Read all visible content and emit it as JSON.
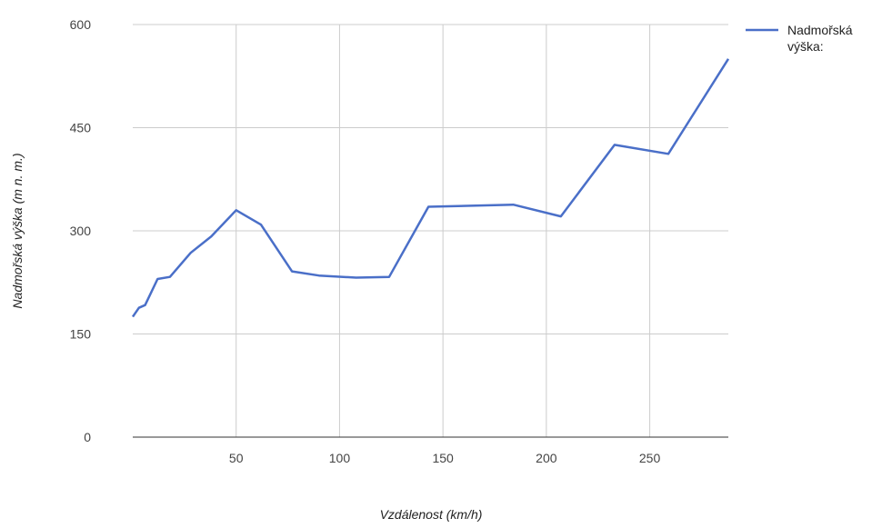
{
  "chart_data": {
    "type": "line",
    "title": "",
    "xlabel": "Vzdálenost (km/h)",
    "ylabel": "Nadmořská výška (m n. m.)",
    "xlim": [
      0,
      288
    ],
    "ylim": [
      0,
      600
    ],
    "x_ticks": [
      50,
      100,
      150,
      200,
      250
    ],
    "y_ticks": [
      0,
      150,
      300,
      450,
      600
    ],
    "grid": true,
    "legend_position": "right",
    "series": [
      {
        "name": "Nadmořská výška:",
        "name_lines": [
          "Nadmořská",
          "výška:"
        ],
        "color": "#4a6fc8",
        "x": [
          0,
          3,
          6,
          12,
          18,
          28,
          38,
          50,
          62,
          77,
          90,
          108,
          124,
          143,
          184,
          207,
          233,
          259,
          288
        ],
        "y": [
          175,
          188,
          192,
          230,
          233,
          268,
          292,
          330,
          309,
          241,
          235,
          232,
          233,
          335,
          338,
          321,
          425,
          412,
          550
        ]
      }
    ]
  }
}
